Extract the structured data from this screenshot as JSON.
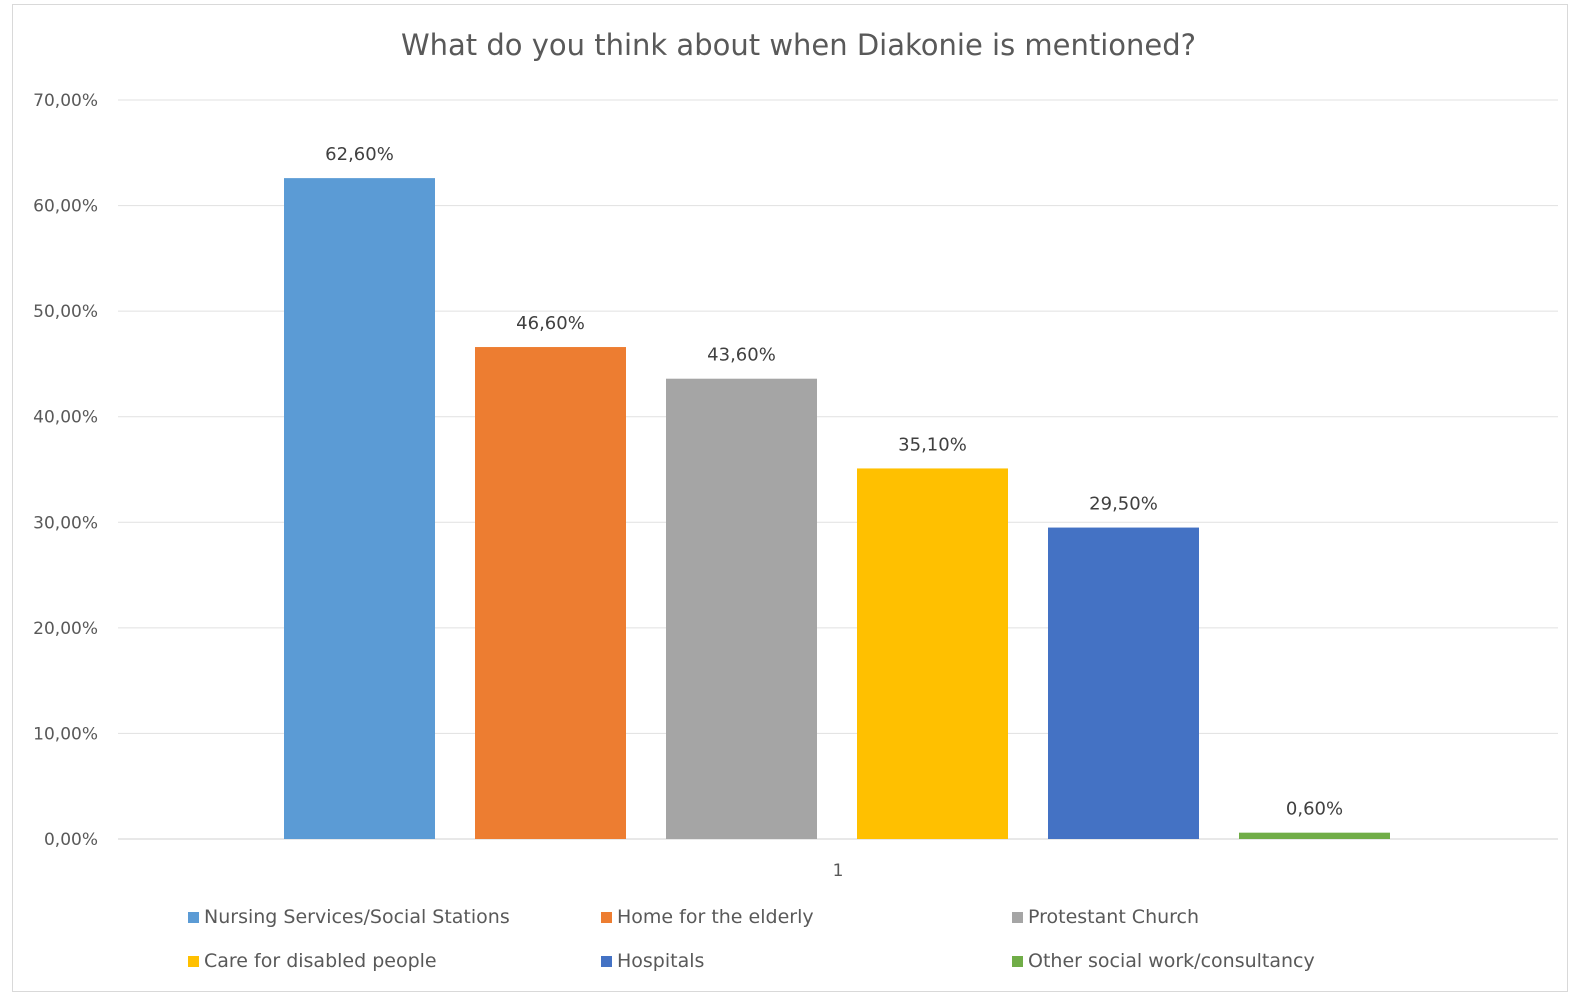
{
  "chart_data": {
    "type": "bar",
    "title": "What do you think about when Diakonie is mentioned?",
    "categories": [
      "1"
    ],
    "series": [
      {
        "name": "Nursing Services/Social Stations",
        "values": [
          0.626
        ],
        "label": "62,60%",
        "color": "#5b9bd5"
      },
      {
        "name": "Home for the elderly",
        "values": [
          0.466
        ],
        "label": "46,60%",
        "color": "#ed7d31"
      },
      {
        "name": "Protestant Church",
        "values": [
          0.436
        ],
        "label": "43,60%",
        "color": "#a5a5a5"
      },
      {
        "name": "Care for disabled people",
        "values": [
          0.351
        ],
        "label": "35,10%",
        "color": "#ffc000"
      },
      {
        "name": "Hospitals",
        "values": [
          0.295
        ],
        "label": "29,50%",
        "color": "#4472c4"
      },
      {
        "name": "Other social work/consultancy",
        "values": [
          0.006
        ],
        "label": "0,60%",
        "color": "#70ad47"
      }
    ],
    "ylim": [
      0,
      0.7
    ],
    "yticks": [
      0,
      0.1,
      0.2,
      0.3,
      0.4,
      0.5,
      0.6,
      0.7
    ],
    "ytick_labels": [
      "0,00%",
      "10,00%",
      "20,00%",
      "30,00%",
      "40,00%",
      "50,00%",
      "60,00%",
      "70,00%"
    ],
    "grid": true,
    "legend_position": "bottom"
  }
}
